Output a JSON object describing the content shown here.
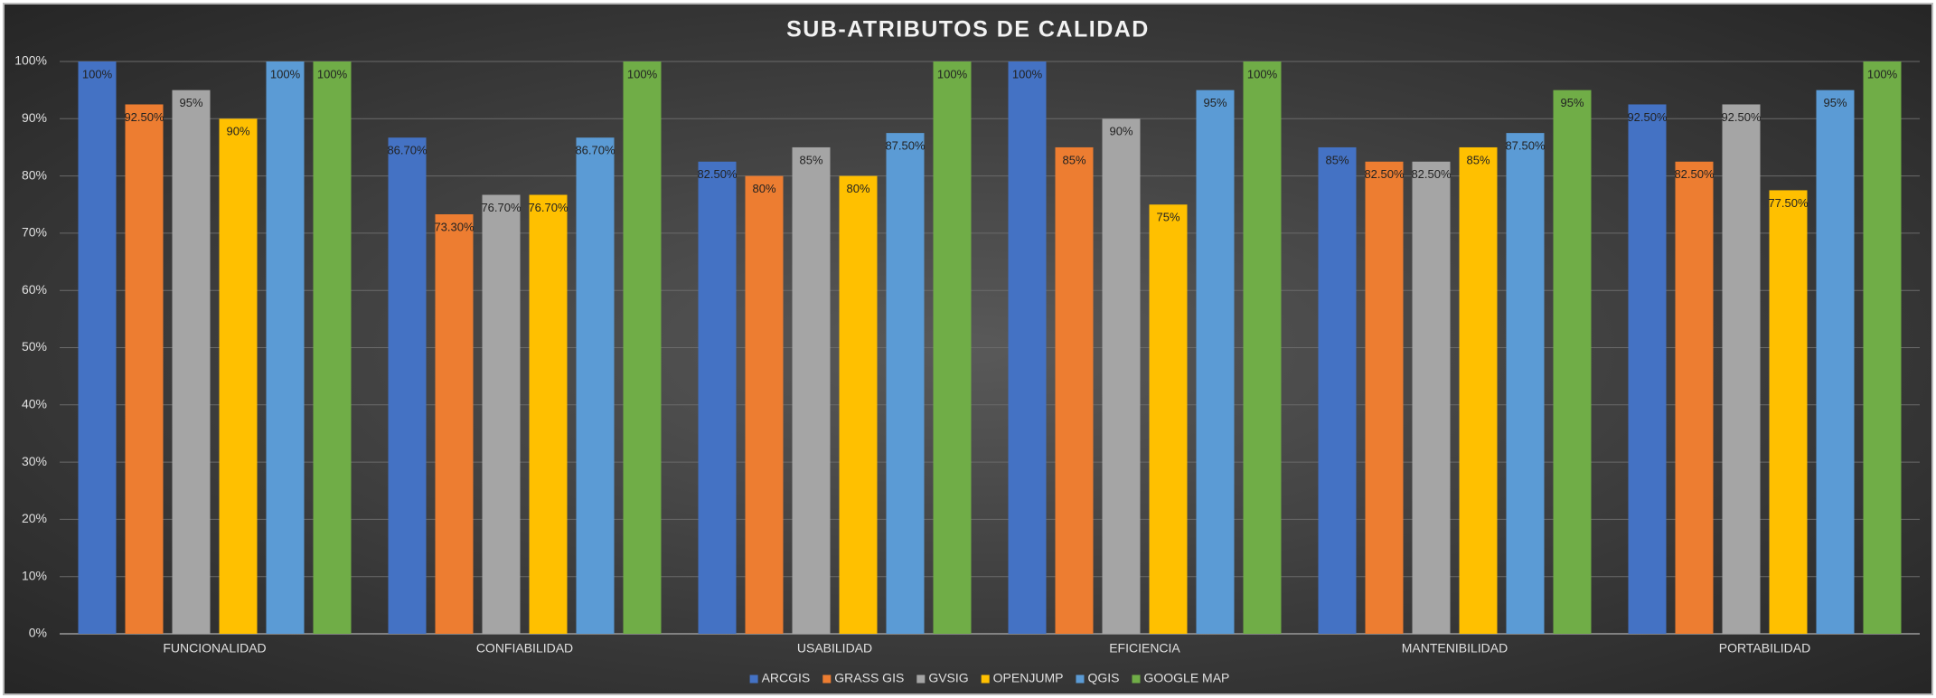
{
  "chart_data": {
    "type": "bar",
    "title": "SUB-ATRIBUTOS DE CALIDAD",
    "categories": [
      "FUNCIONALIDAD",
      "CONFIABILIDAD",
      "USABILIDAD",
      "EFICIENCIA",
      "MANTENIBILIDAD",
      "PORTABILIDAD"
    ],
    "series": [
      {
        "name": "ARCGIS",
        "color": "#4472c4",
        "values": [
          100,
          86.7,
          82.5,
          100,
          85,
          92.5
        ],
        "value_labels": [
          "100%",
          "86.70%",
          "82.50%",
          "100%",
          "85%",
          "92.50%"
        ]
      },
      {
        "name": "GRASS GIS",
        "color": "#ed7d31",
        "values": [
          92.5,
          73.3,
          80,
          85,
          82.5,
          82.5
        ],
        "value_labels": [
          "92.50%",
          "73.30%",
          "80%",
          "85%",
          "82.50%",
          "82.50%"
        ]
      },
      {
        "name": "GVSIG",
        "color": "#a5a5a5",
        "values": [
          95,
          76.7,
          85,
          90,
          82.5,
          92.5
        ],
        "value_labels": [
          "95%",
          "76.70%",
          "85%",
          "90%",
          "82.50%",
          "92.50%"
        ]
      },
      {
        "name": "OPENJUMP",
        "color": "#ffc000",
        "values": [
          90,
          76.7,
          80,
          75,
          85,
          77.5
        ],
        "value_labels": [
          "90%",
          "76.70%",
          "80%",
          "75%",
          "85%",
          "77.50%"
        ]
      },
      {
        "name": "QGIS",
        "color": "#5b9bd5",
        "values": [
          100,
          86.7,
          87.5,
          95,
          87.5,
          95
        ],
        "value_labels": [
          "100%",
          "86.70%",
          "87.50%",
          "95%",
          "87.50%",
          "95%"
        ]
      },
      {
        "name": "GOOGLE MAP",
        "color": "#70ad47",
        "values": [
          100,
          100,
          100,
          100,
          95,
          100
        ],
        "value_labels": [
          "100%",
          "100%",
          "100%",
          "100%",
          "95%",
          "100%"
        ]
      }
    ],
    "ylim": [
      0,
      100
    ],
    "yticks": [
      {
        "value": 0,
        "label": "0%"
      },
      {
        "value": 10,
        "label": "10%"
      },
      {
        "value": 20,
        "label": "20%"
      },
      {
        "value": 30,
        "label": "30%"
      },
      {
        "value": 40,
        "label": "40%"
      },
      {
        "value": 50,
        "label": "50%"
      },
      {
        "value": 60,
        "label": "60%"
      },
      {
        "value": 70,
        "label": "70%"
      },
      {
        "value": 80,
        "label": "80%"
      },
      {
        "value": 90,
        "label": "90%"
      },
      {
        "value": 100,
        "label": "100%"
      }
    ],
    "grid": true,
    "legend": "bottom"
  }
}
